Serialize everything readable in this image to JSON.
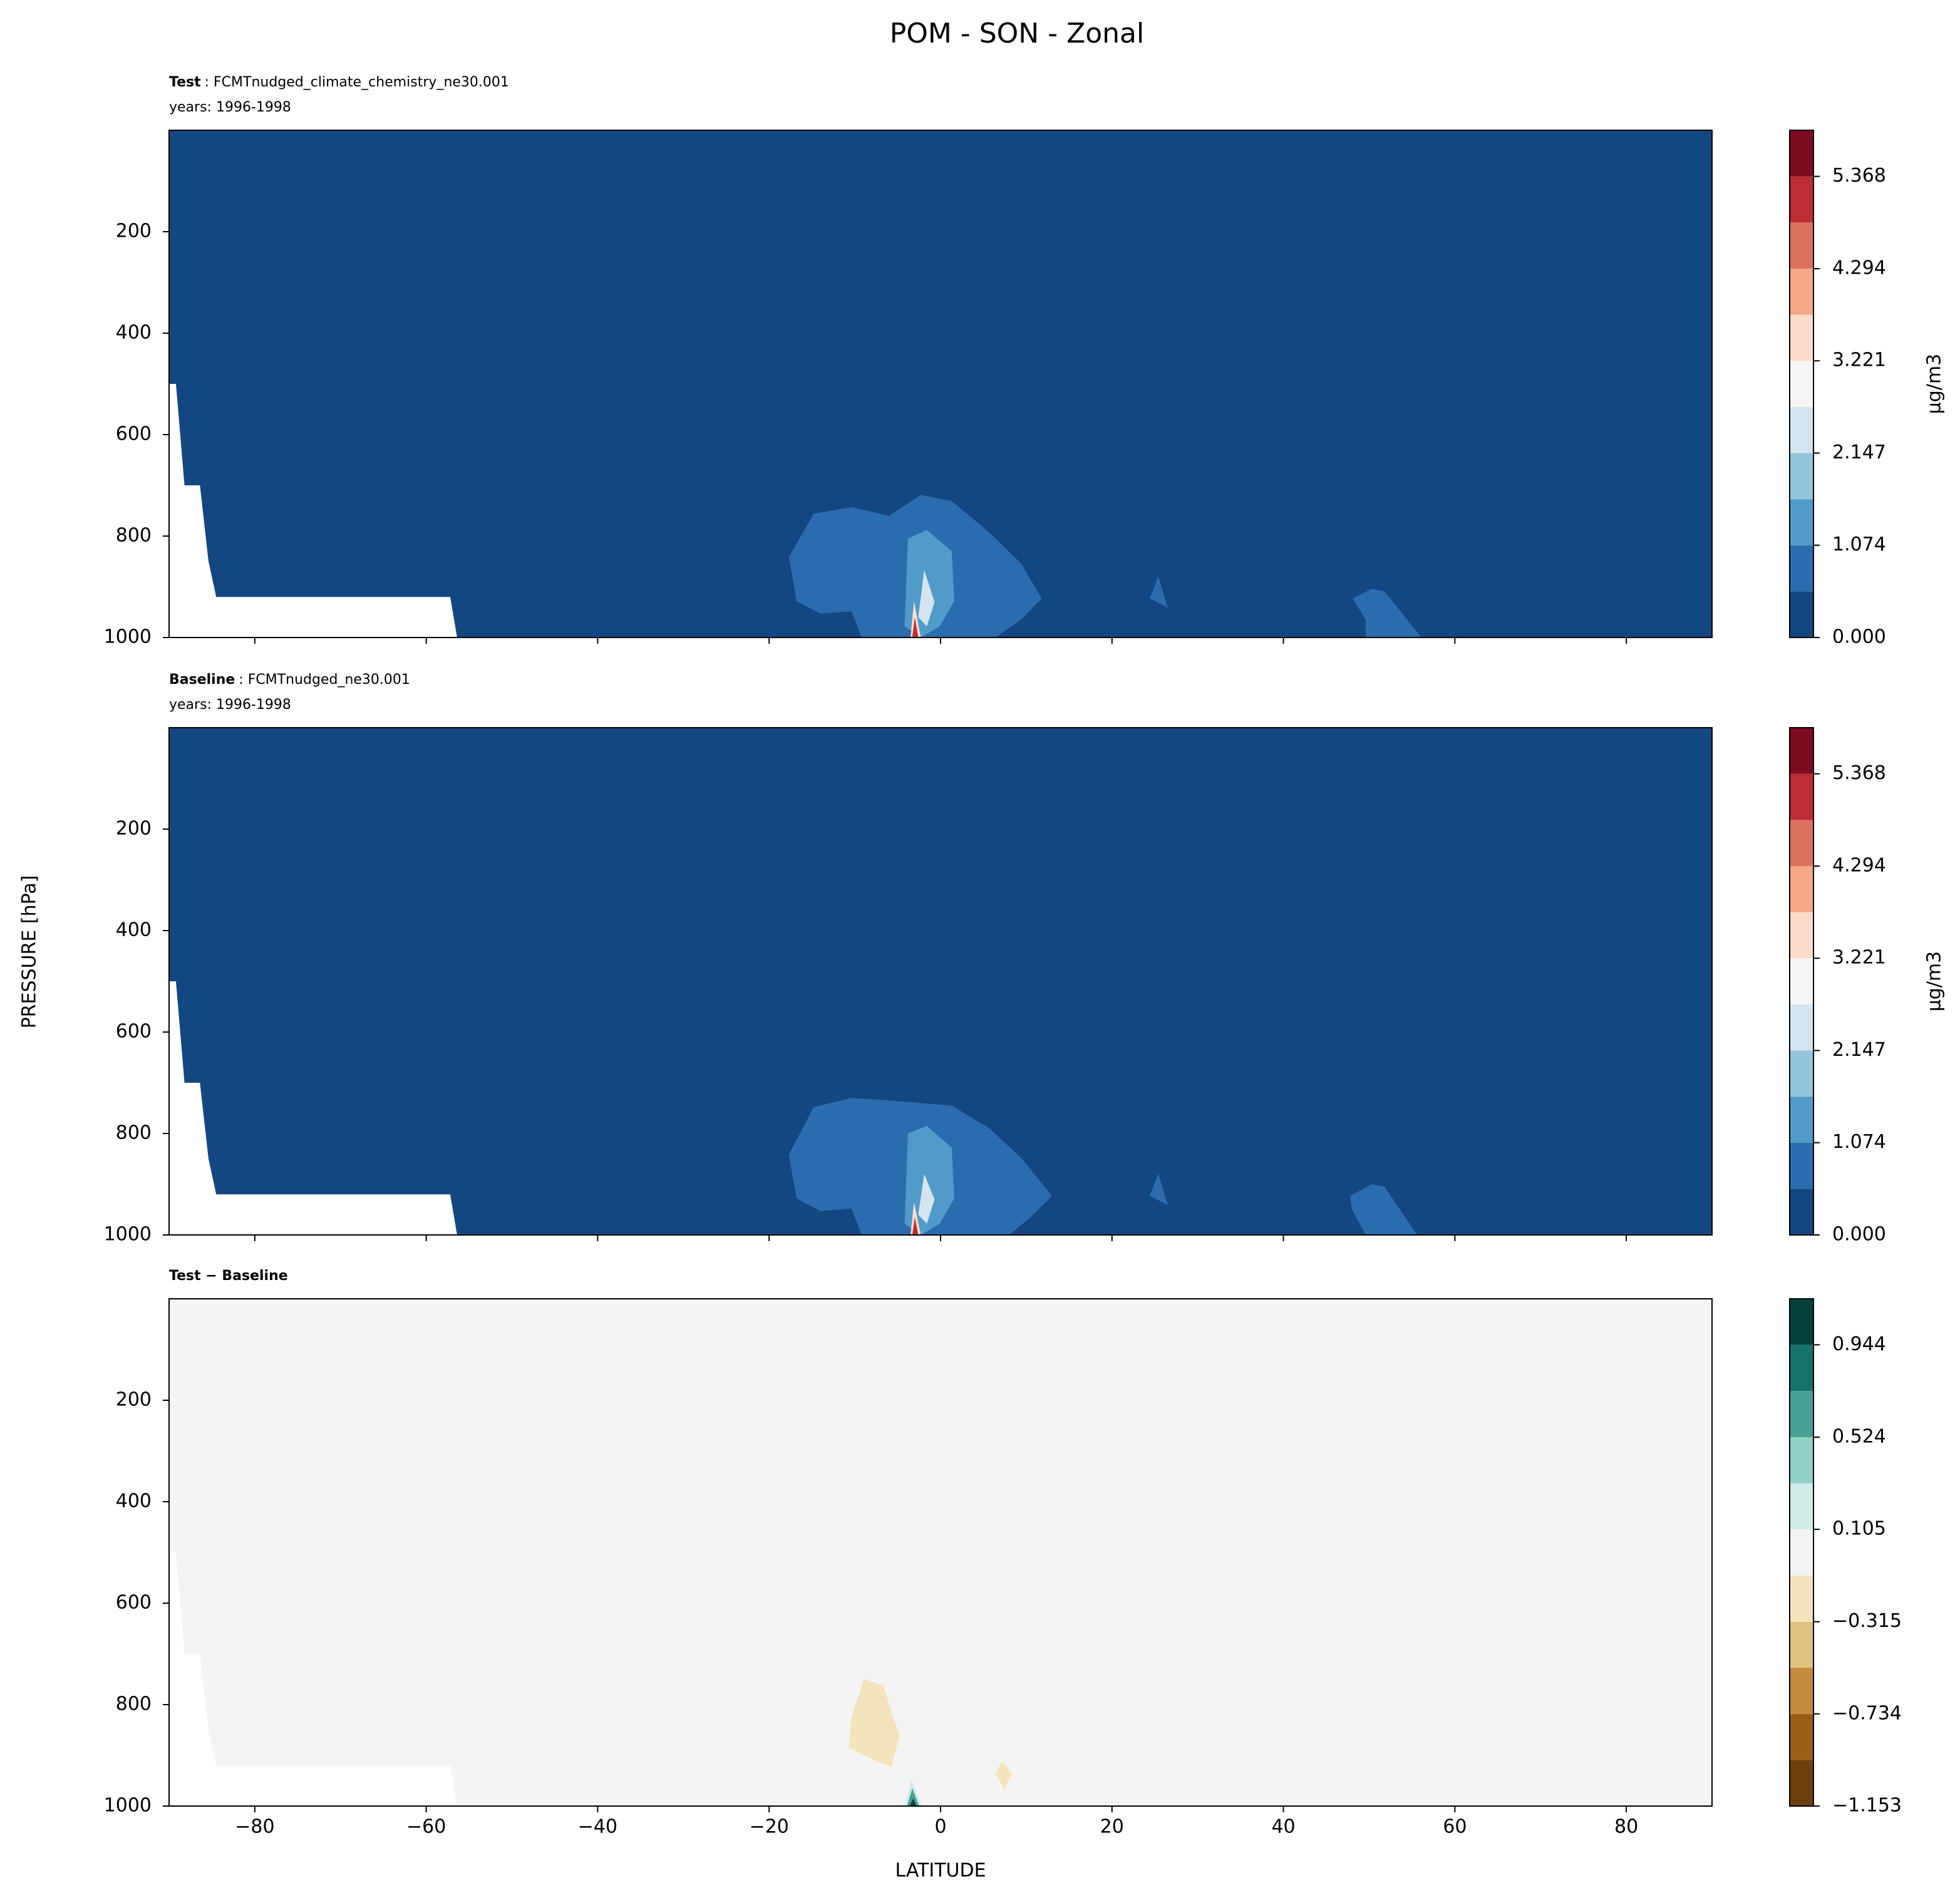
{
  "title": "POM - SON - Zonal",
  "xlabel": "LATITUDE",
  "ylabel": "PRESSURE [hPa]",
  "chart_data": [
    {
      "type": "contour",
      "subtitle_bold": "Test",
      "subtitle": ": FCMTnudged_climate_chemistry_ne30.001",
      "years": "years: 1996-1998",
      "xlim": [
        -90,
        90
      ],
      "ylim": [
        1000,
        0
      ],
      "xticks": [
        -80,
        -60,
        -40,
        -20,
        0,
        20,
        40,
        60,
        80
      ],
      "yticks": [
        200,
        400,
        600,
        800,
        1000
      ],
      "cbar_label": "μg/m3",
      "levels": [
        0,
        0.537,
        1.074,
        1.61,
        2.147,
        2.684,
        3.221,
        3.758,
        4.294,
        4.831,
        5.368,
        5.905
      ],
      "colors": [
        "#134781",
        "#2b6cae",
        "#519bca",
        "#94c5de",
        "#d4e5f0",
        "#f6f6f6",
        "#fbdcca",
        "#f4a886",
        "#dc7160",
        "#bd2d34",
        "#7d0b22"
      ],
      "cbar_ticks": [
        {
          "value": 0,
          "label": "0.000"
        },
        {
          "value": 1.074,
          "label": "1.074"
        },
        {
          "value": 2.147,
          "label": "2.147"
        },
        {
          "value": 3.221,
          "label": "3.221"
        },
        {
          "value": 4.294,
          "label": "4.294"
        },
        {
          "value": 5.368,
          "label": "5.368"
        }
      ],
      "missing_region": [
        [
          -90,
          500
        ],
        [
          -89.2,
          500
        ],
        [
          -88.2,
          700
        ],
        [
          -86.4,
          700
        ],
        [
          -85.4,
          850
        ],
        [
          -84.5,
          920
        ],
        [
          -57.2,
          920
        ],
        [
          -56.4,
          1000
        ],
        [
          -90,
          1000
        ]
      ],
      "regions": [
        {
          "level": 0,
          "points": [
            [
              -90,
              0
            ],
            [
              90,
              0
            ],
            [
              90,
              1000
            ],
            [
              -90,
              1000
            ]
          ]
        },
        {
          "level": 0.537,
          "points": [
            [
              -17.7,
              842
            ],
            [
              -14.8,
              756
            ],
            [
              -10.4,
              743
            ],
            [
              -6,
              760
            ],
            [
              -2.3,
              719
            ],
            [
              1.3,
              731
            ],
            [
              5.7,
              793
            ],
            [
              9.4,
              854
            ],
            [
              11.8,
              923
            ],
            [
              9.4,
              965
            ],
            [
              6.4,
              1000
            ],
            [
              -9.2,
              1000
            ],
            [
              -10.4,
              948
            ],
            [
              -14,
              953
            ],
            [
              -16.8,
              928
            ]
          ]
        },
        {
          "level": 0.537,
          "points": [
            [
              25.4,
              879
            ],
            [
              26.5,
              941
            ],
            [
              24.4,
              923
            ]
          ]
        },
        {
          "level": 0.537,
          "points": [
            [
              48.1,
              923
            ],
            [
              50.3,
              904
            ],
            [
              51.8,
              909
            ],
            [
              56.1,
              1000
            ],
            [
              49.6,
              1000
            ],
            [
              49.6,
              965
            ]
          ]
        },
        {
          "level": 1.074,
          "points": [
            [
              -3.8,
              805
            ],
            [
              -1.6,
              788
            ],
            [
              1.3,
              830
            ],
            [
              1.6,
              928
            ],
            [
              -0.1,
              978
            ],
            [
              -2.3,
              1000
            ],
            [
              -4.2,
              978
            ]
          ]
        },
        {
          "level": 2.147,
          "points": [
            [
              -1.9,
              867
            ],
            [
              -0.7,
              930
            ],
            [
              -1.6,
              978
            ],
            [
              -2.6,
              960
            ]
          ]
        },
        {
          "level": 3.221,
          "points": [
            [
              -3.5,
              1000
            ],
            [
              -3.1,
              928
            ],
            [
              -2.3,
              1000
            ]
          ]
        },
        {
          "level": 4.831,
          "points": [
            [
              -3.3,
              1000
            ],
            [
              -3.0,
              960
            ],
            [
              -2.6,
              1000
            ]
          ]
        }
      ]
    },
    {
      "type": "contour",
      "subtitle_bold": "Baseline",
      "subtitle": ": FCMTnudged_ne30.001",
      "years": "years: 1996-1998",
      "xlim": [
        -90,
        90
      ],
      "ylim": [
        1000,
        0
      ],
      "xticks": [
        -80,
        -60,
        -40,
        -20,
        0,
        20,
        40,
        60,
        80
      ],
      "yticks": [
        200,
        400,
        600,
        800,
        1000
      ],
      "cbar_label": "μg/m3",
      "levels": [
        0,
        0.537,
        1.074,
        1.61,
        2.147,
        2.684,
        3.221,
        3.758,
        4.294,
        4.831,
        5.368,
        5.905
      ],
      "colors": [
        "#134781",
        "#2b6cae",
        "#519bca",
        "#94c5de",
        "#d4e5f0",
        "#f6f6f6",
        "#fbdcca",
        "#f4a886",
        "#dc7160",
        "#bd2d34",
        "#7d0b22"
      ],
      "cbar_ticks": [
        {
          "value": 0,
          "label": "0.000"
        },
        {
          "value": 1.074,
          "label": "1.074"
        },
        {
          "value": 2.147,
          "label": "2.147"
        },
        {
          "value": 3.221,
          "label": "3.221"
        },
        {
          "value": 4.294,
          "label": "4.294"
        },
        {
          "value": 5.368,
          "label": "5.368"
        }
      ],
      "missing_region": [
        [
          -90,
          500
        ],
        [
          -89.2,
          500
        ],
        [
          -88.2,
          700
        ],
        [
          -86.4,
          700
        ],
        [
          -85.4,
          850
        ],
        [
          -84.5,
          920
        ],
        [
          -57.2,
          920
        ],
        [
          -56.4,
          1000
        ],
        [
          -90,
          1000
        ]
      ],
      "regions": [
        {
          "level": 0,
          "points": [
            [
              -90,
              0
            ],
            [
              90,
              0
            ],
            [
              90,
              1000
            ],
            [
              -90,
              1000
            ]
          ]
        },
        {
          "level": 0.537,
          "points": [
            [
              -17.7,
              842
            ],
            [
              -14.8,
              748
            ],
            [
              -10.4,
              730
            ],
            [
              -6,
              735
            ],
            [
              -2.3,
              740
            ],
            [
              1.3,
              745
            ],
            [
              5.7,
              790
            ],
            [
              9.4,
              848
            ],
            [
              13,
              923
            ],
            [
              10.5,
              965
            ],
            [
              8,
              1000
            ],
            [
              -9.2,
              1000
            ],
            [
              -10.4,
              948
            ],
            [
              -14,
              953
            ],
            [
              -16.8,
              928
            ]
          ]
        },
        {
          "level": 0.537,
          "points": [
            [
              25.4,
              879
            ],
            [
              26.5,
              941
            ],
            [
              24.4,
              923
            ]
          ]
        },
        {
          "level": 0.537,
          "points": [
            [
              47.8,
              923
            ],
            [
              50.3,
              900
            ],
            [
              51.8,
              905
            ],
            [
              55.6,
              1000
            ],
            [
              49.6,
              1000
            ],
            [
              48,
              950
            ]
          ]
        },
        {
          "level": 1.074,
          "points": [
            [
              -3.8,
              800
            ],
            [
              -1.6,
              785
            ],
            [
              1.3,
              828
            ],
            [
              1.6,
              928
            ],
            [
              -0.1,
              978
            ],
            [
              -2.3,
              1000
            ],
            [
              -4.2,
              978
            ]
          ]
        },
        {
          "level": 2.147,
          "points": [
            [
              -1.9,
              880
            ],
            [
              -0.7,
              930
            ],
            [
              -1.6,
              978
            ],
            [
              -2.6,
              960
            ]
          ]
        },
        {
          "level": 3.221,
          "points": [
            [
              -3.5,
              1000
            ],
            [
              -3.1,
              935
            ],
            [
              -2.3,
              1000
            ]
          ]
        },
        {
          "level": 4.831,
          "points": [
            [
              -3.3,
              1000
            ],
            [
              -3.0,
              965
            ],
            [
              -2.6,
              1000
            ]
          ]
        }
      ]
    },
    {
      "type": "contour",
      "subtitle_bold": "Test − Baseline",
      "xlim": [
        -90,
        90
      ],
      "ylim": [
        1000,
        0
      ],
      "xticks": [
        {
          "value": -80,
          "label": "−80"
        },
        {
          "value": -60,
          "label": "−60"
        },
        {
          "value": -40,
          "label": "−40"
        },
        {
          "value": -20,
          "label": "−20"
        },
        0,
        20,
        40,
        60,
        80
      ],
      "yticks": [
        200,
        400,
        600,
        800,
        1000
      ],
      "levels": [
        -1.153,
        -0.943,
        -0.734,
        -0.524,
        -0.315,
        -0.105,
        0.105,
        0.314,
        0.524,
        0.734,
        0.944,
        1.153
      ],
      "colors": [
        "#6b400a",
        "#995d18",
        "#c38b3e",
        "#dfc27d",
        "#f4e4bc",
        "#f3f4f3",
        "#d1ece8",
        "#8fd1c5",
        "#48a096",
        "#15726a",
        "#05413a"
      ],
      "cbar_ticks": [
        {
          "value": -1.153,
          "label": "−1.153"
        },
        {
          "value": -0.734,
          "label": "−0.734"
        },
        {
          "value": -0.315,
          "label": "−0.315"
        },
        {
          "value": 0.105,
          "label": "0.105"
        },
        {
          "value": 0.524,
          "label": "0.524"
        },
        {
          "value": 0.944,
          "label": "0.944"
        }
      ],
      "missing_region": [
        [
          -90,
          500
        ],
        [
          -89.2,
          500
        ],
        [
          -88.2,
          700
        ],
        [
          -86.4,
          700
        ],
        [
          -85.4,
          850
        ],
        [
          -84.5,
          920
        ],
        [
          -57.2,
          920
        ],
        [
          -56.4,
          1000
        ],
        [
          -90,
          1000
        ]
      ],
      "regions": [
        {
          "level": -0.105,
          "points": [
            [
              -90,
              0
            ],
            [
              90,
              0
            ],
            [
              90,
              1000
            ],
            [
              -90,
              1000
            ]
          ]
        },
        {
          "level": -0.315,
          "points": [
            [
              -10.4,
              824
            ],
            [
              -8.9,
              750
            ],
            [
              -6.7,
              762
            ],
            [
              -4.8,
              861
            ],
            [
              -5.7,
              923
            ],
            [
              -7.5,
              911
            ],
            [
              -10.7,
              886
            ]
          ]
        },
        {
          "level": -0.315,
          "points": [
            [
              7.2,
              911
            ],
            [
              8.3,
              936
            ],
            [
              7.5,
              968
            ],
            [
              6.4,
              936
            ]
          ]
        },
        {
          "level": 0.105,
          "points": [
            [
              -3.4,
              948
            ],
            [
              -2.2,
              1000
            ],
            [
              -4.2,
              1000
            ]
          ]
        },
        {
          "level": 0.524,
          "points": [
            [
              -3.3,
              965
            ],
            [
              -2.5,
              1000
            ],
            [
              -3.9,
              1000
            ]
          ]
        },
        {
          "level": 0.944,
          "points": [
            [
              -3.2,
              985
            ],
            [
              -2.8,
              1000
            ],
            [
              -3.6,
              1000
            ]
          ]
        }
      ]
    }
  ]
}
